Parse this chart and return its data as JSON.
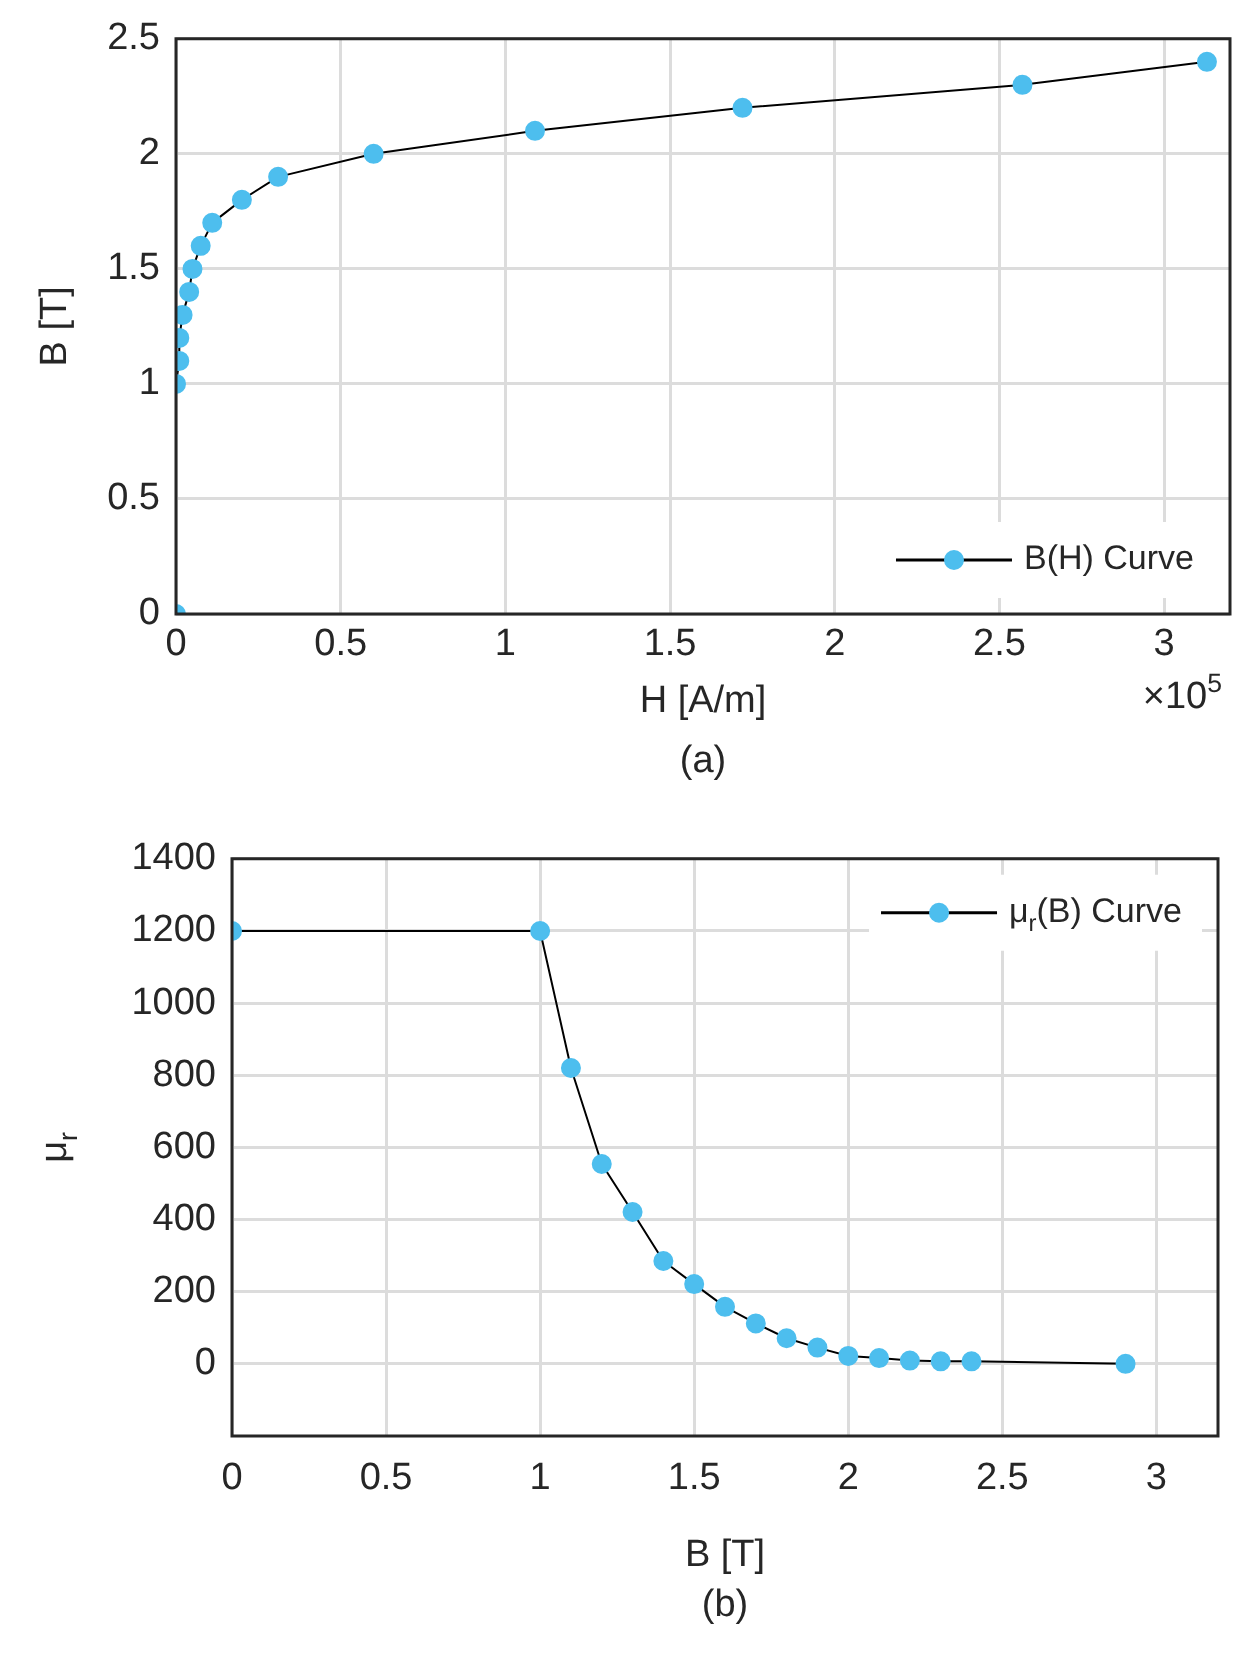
{
  "chart_data": [
    {
      "type": "line",
      "xlabel": "H [A/m]",
      "ylabel": "B [T]",
      "annotations": [
        "×10$^{5}$",
        "(a)"
      ],
      "x": [
        0,
        0,
        0.01,
        0.01,
        0.02,
        0.04,
        0.05,
        0.075,
        0.11,
        0.2,
        0.31,
        0.6,
        1.09,
        1.72,
        2.57,
        3.13
      ],
      "series": [
        {
          "name": "B(H) Curve",
          "color": "#4dbeee",
          "values": [
            0,
            1,
            1.1,
            1.2,
            1.3,
            1.4,
            1.5,
            1.6,
            1.7,
            1.8,
            1.9,
            2,
            2.1,
            2.2,
            2.3,
            2.4
          ]
        }
      ],
      "xlim": [
        0,
        3.2
      ],
      "xticks": [
        0,
        0.5,
        1,
        1.5,
        2,
        2.5,
        3
      ],
      "ylim": [
        0,
        2.5
      ],
      "yticks": [
        0,
        0.5,
        1,
        1.5,
        2,
        2.5
      ],
      "grid": true,
      "legend": "bottom right",
      "marker": "circle",
      "line_style": "solid"
    },
    {
      "type": "line",
      "xlabel": "B [T]",
      "ylabel": "μ$_{r}$",
      "annotations": [
        "(b)"
      ],
      "x": [
        0,
        1,
        1.1,
        1.2,
        1.3,
        1.4,
        1.5,
        1.6,
        1.7,
        1.8,
        1.9,
        2,
        2.1,
        2.2,
        2.3,
        2.4,
        2.9
      ],
      "series": [
        {
          "name": "μ$_{r}$(B) Curve",
          "color": "#4dbeee",
          "values": [
            1200,
            1200,
            820,
            554,
            421,
            285,
            221,
            158,
            112,
            71,
            45,
            22,
            16,
            9,
            7,
            7,
            0
          ]
        }
      ],
      "xlim": [
        0,
        3.2
      ],
      "xticks": [
        0,
        0.5,
        1,
        1.5,
        2,
        2.5,
        3
      ],
      "ylim": [
        -200,
        1400
      ],
      "yticks": [
        0,
        200,
        400,
        600,
        800,
        1000,
        1200,
        1400
      ],
      "grid": true,
      "legend": "top right",
      "marker": "circle",
      "line_style": "solid"
    }
  ]
}
